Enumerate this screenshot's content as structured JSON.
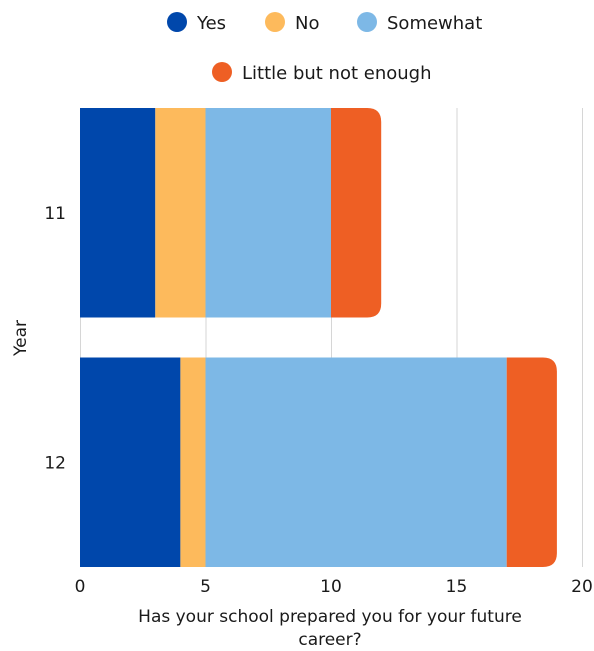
{
  "chart_data": {
    "type": "bar",
    "orientation": "horizontal",
    "stacked": true,
    "categories": [
      "11",
      "12"
    ],
    "series": [
      {
        "name": "Yes",
        "values": [
          3,
          4
        ],
        "color": "#0047AB"
      },
      {
        "name": "No",
        "values": [
          2,
          1
        ],
        "color": "#FDBA5C"
      },
      {
        "name": "Somewhat",
        "values": [
          5,
          12
        ],
        "color": "#7DB8E6"
      },
      {
        "name": "Little but not enough",
        "values": [
          2,
          2
        ],
        "color": "#EE5F24"
      }
    ],
    "title": "",
    "xlabel": "Has your school prepared you for your future career?",
    "ylabel": "Year",
    "xlim": [
      0,
      20
    ],
    "xticks": [
      0,
      5,
      10,
      15,
      20
    ],
    "grid": true,
    "legend_position": "top"
  }
}
